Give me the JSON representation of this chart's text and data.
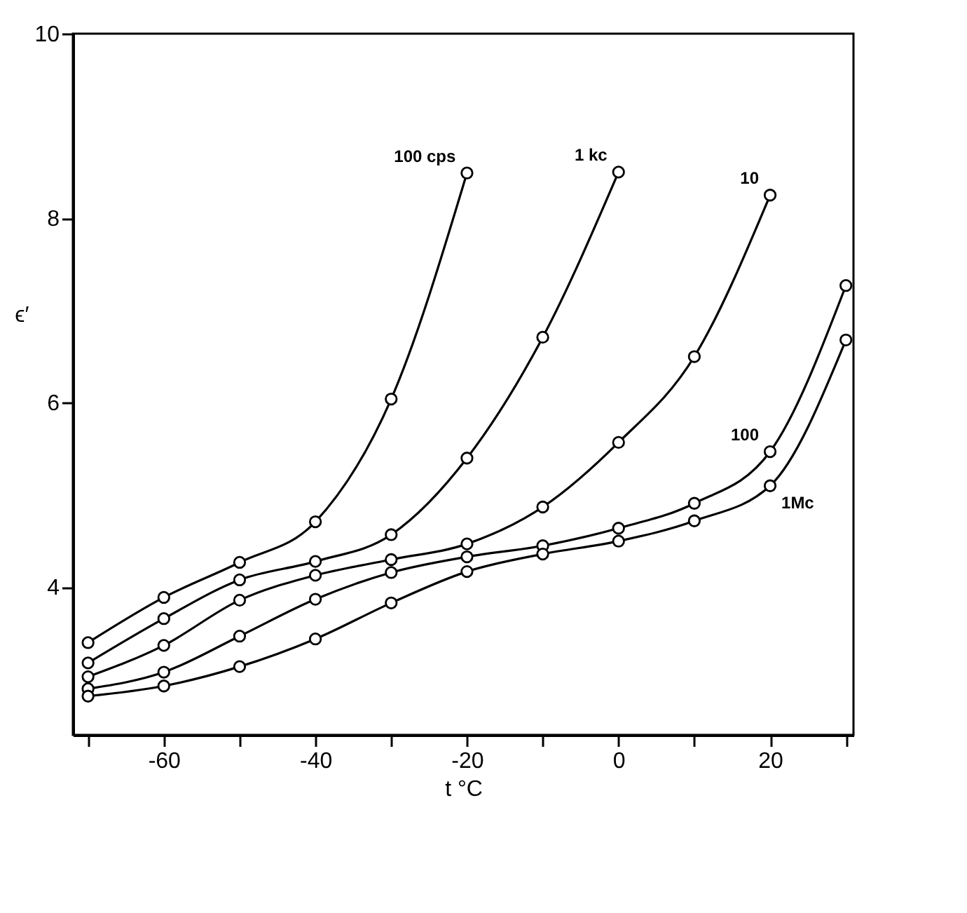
{
  "chart_data": {
    "type": "line",
    "xlabel": "t °C",
    "ylabel": "ϵ′",
    "x": [
      -70,
      -60,
      -50,
      -40,
      -30,
      -20,
      -10,
      0,
      10,
      20,
      30
    ],
    "series": [
      {
        "name": "100 cps",
        "color": "#000000",
        "values": [
          3.4,
          3.89,
          4.27,
          4.71,
          6.04,
          8.49,
          null,
          null,
          null,
          null,
          null
        ]
      },
      {
        "name": "1 kc",
        "color": "#000000",
        "values": [
          3.18,
          3.66,
          4.08,
          4.28,
          4.57,
          5.4,
          6.71,
          8.5,
          null,
          null,
          null
        ]
      },
      {
        "name": "10",
        "color": "#000000",
        "values": [
          3.03,
          3.37,
          3.86,
          4.13,
          4.3,
          4.47,
          4.87,
          5.57,
          6.5,
          8.25,
          null
        ]
      },
      {
        "name": "100",
        "color": "#000000",
        "values": [
          2.9,
          3.08,
          3.47,
          3.87,
          4.16,
          4.33,
          4.45,
          4.64,
          4.91,
          5.47,
          7.27
        ]
      },
      {
        "name": "1Mc",
        "color": "#000000",
        "values": [
          2.82,
          2.93,
          3.14,
          3.44,
          3.83,
          4.17,
          4.36,
          4.5,
          4.72,
          5.1,
          6.68
        ]
      }
    ],
    "xlim": [
      -72,
      31
    ],
    "ylim": [
      2.4,
      10
    ],
    "xticks": [
      {
        "value": -70,
        "label": null
      },
      -60,
      {
        "value": -50,
        "label": null
      },
      -40,
      {
        "value": -30,
        "label": null
      },
      -20,
      {
        "value": -10,
        "label": null
      },
      0,
      {
        "value": 10,
        "label": null
      },
      20,
      {
        "value": 30,
        "label": null
      }
    ],
    "yticks": [
      4,
      6,
      8,
      10
    ],
    "grid": false,
    "marker": "circle",
    "line_style": "solid"
  }
}
